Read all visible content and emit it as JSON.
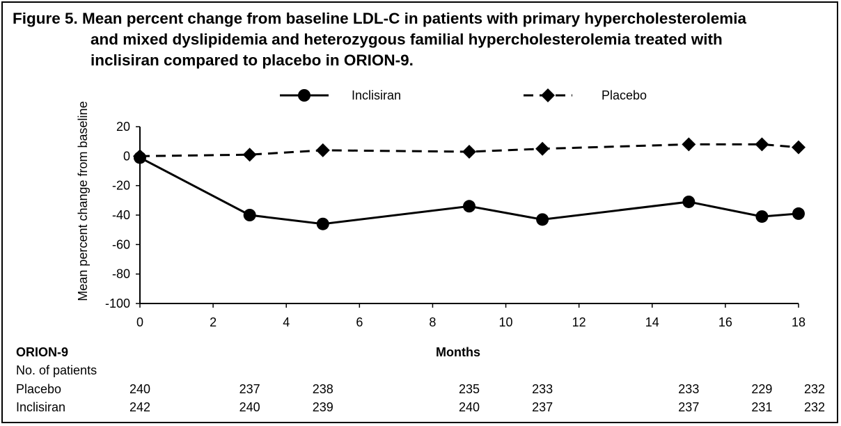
{
  "figure": {
    "title_prefix": "Figure 5.",
    "title_line1": "Figure 5. Mean percent change from baseline LDL-C in patients with primary hypercholesterolemia",
    "title_line2": "and mixed dyslipidemia and heterozygous familial hypercholesterolemia treated with",
    "title_line3": "inclisiran compared to placebo in ORION-9."
  },
  "chart_data": {
    "type": "line",
    "xlabel": "Months",
    "ylabel": "Mean percent change from baseline",
    "xlim": [
      0,
      18
    ],
    "ylim": [
      -100,
      20
    ],
    "xticks": [
      "0",
      "2",
      "4",
      "6",
      "8",
      "10",
      "12",
      "14",
      "16",
      "18"
    ],
    "yticks": [
      "20",
      "0",
      "-20",
      "-40",
      "-60",
      "-80",
      "-100"
    ],
    "legend_position": "top",
    "grid": false,
    "series": [
      {
        "name": "Inclisiran",
        "marker": "circle",
        "line": "solid",
        "x": [
          0,
          3,
          5,
          9,
          11,
          15,
          17,
          18
        ],
        "y": [
          -1,
          -40,
          -46,
          -34,
          -43,
          -31,
          -41,
          -39
        ]
      },
      {
        "name": "Placebo",
        "marker": "diamond",
        "line": "dashed",
        "x": [
          0,
          3,
          5,
          9,
          11,
          15,
          17,
          18
        ],
        "y": [
          0,
          1,
          4,
          3,
          5,
          8,
          8,
          6
        ]
      }
    ]
  },
  "table": {
    "study": "ORION-9",
    "subheader": "No. of patients",
    "rows": [
      {
        "label": "Placebo",
        "values": [
          "240",
          "237",
          "238",
          "235",
          "233",
          "233",
          "229",
          "232"
        ]
      },
      {
        "label": "Inclisiran",
        "values": [
          "242",
          "240",
          "239",
          "240",
          "237",
          "237",
          "231",
          "232"
        ]
      }
    ]
  }
}
